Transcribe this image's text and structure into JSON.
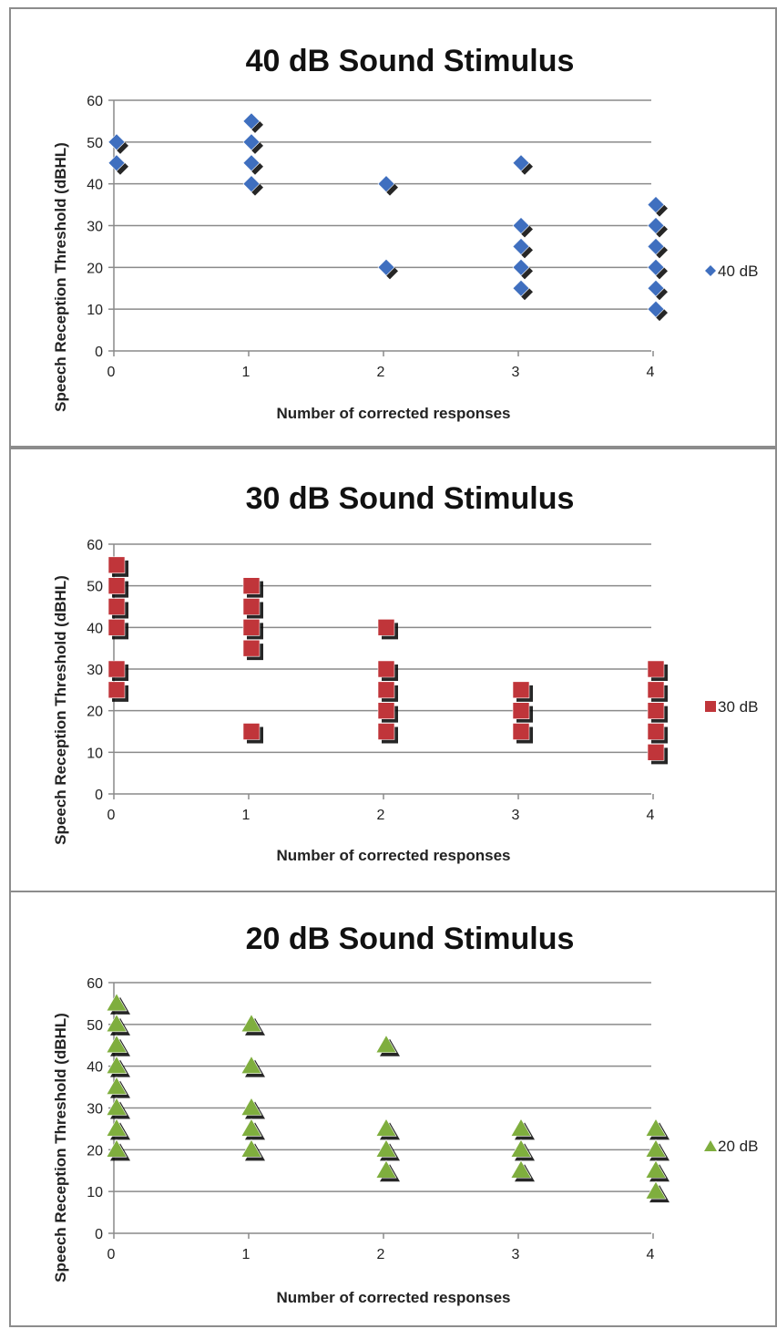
{
  "chart_data": [
    {
      "type": "scatter",
      "title": "40 dB Sound Stimulus",
      "xlabel": "Number of corrected responses",
      "ylabel": "Speech Reception Threshold (dBHL)",
      "xlim": [
        0,
        4
      ],
      "ylim": [
        0,
        60
      ],
      "xticks": [
        "0",
        "1",
        "2",
        "3",
        "4"
      ],
      "yticks": [
        "0",
        "10",
        "20",
        "30",
        "40",
        "50",
        "60"
      ],
      "grid": "horizontal",
      "legend_position": "right",
      "marker": "diamond",
      "color": "#3f6fbf",
      "series": [
        {
          "name": "40 dB",
          "points": [
            [
              0,
              45
            ],
            [
              0,
              50
            ],
            [
              1,
              40
            ],
            [
              1,
              45
            ],
            [
              1,
              50
            ],
            [
              1,
              55
            ],
            [
              2,
              20
            ],
            [
              2,
              40
            ],
            [
              3,
              15
            ],
            [
              3,
              20
            ],
            [
              3,
              25
            ],
            [
              3,
              30
            ],
            [
              3,
              45
            ],
            [
              4,
              10
            ],
            [
              4,
              15
            ],
            [
              4,
              20
            ],
            [
              4,
              25
            ],
            [
              4,
              30
            ],
            [
              4,
              35
            ]
          ]
        }
      ]
    },
    {
      "type": "scatter",
      "title": "30 dB Sound Stimulus",
      "xlabel": "Number of  corrected responses",
      "ylabel": "Speech Reception Threshold (dBHL)",
      "xlim": [
        0,
        4
      ],
      "ylim": [
        0,
        60
      ],
      "xticks": [
        "0",
        "1",
        "2",
        "3",
        "4"
      ],
      "yticks": [
        "0",
        "10",
        "20",
        "30",
        "40",
        "50",
        "60"
      ],
      "grid": "horizontal",
      "legend_position": "right",
      "marker": "square",
      "color": "#c0353a",
      "series": [
        {
          "name": "30 dB",
          "points": [
            [
              0,
              25
            ],
            [
              0,
              30
            ],
            [
              0,
              40
            ],
            [
              0,
              45
            ],
            [
              0,
              50
            ],
            [
              0,
              55
            ],
            [
              1,
              15
            ],
            [
              1,
              35
            ],
            [
              1,
              40
            ],
            [
              1,
              45
            ],
            [
              1,
              50
            ],
            [
              2,
              15
            ],
            [
              2,
              20
            ],
            [
              2,
              25
            ],
            [
              2,
              30
            ],
            [
              2,
              40
            ],
            [
              3,
              15
            ],
            [
              3,
              20
            ],
            [
              3,
              25
            ],
            [
              4,
              10
            ],
            [
              4,
              15
            ],
            [
              4,
              20
            ],
            [
              4,
              25
            ],
            [
              4,
              30
            ]
          ]
        }
      ]
    },
    {
      "type": "scatter",
      "title": "20 dB Sound Stimulus",
      "xlabel": "Number of corrected responses",
      "ylabel": "Speech Reception Threshold (dBHL)",
      "xlim": [
        0,
        4
      ],
      "ylim": [
        0,
        60
      ],
      "xticks": [
        "0",
        "1",
        "2",
        "3",
        "4"
      ],
      "yticks": [
        "0",
        "10",
        "20",
        "30",
        "40",
        "50",
        "60"
      ],
      "grid": "horizontal",
      "legend_position": "right",
      "marker": "triangle",
      "color": "#7fae3e",
      "series": [
        {
          "name": "20 dB",
          "points": [
            [
              0,
              20
            ],
            [
              0,
              25
            ],
            [
              0,
              30
            ],
            [
              0,
              35
            ],
            [
              0,
              40
            ],
            [
              0,
              45
            ],
            [
              0,
              50
            ],
            [
              0,
              55
            ],
            [
              1,
              20
            ],
            [
              1,
              25
            ],
            [
              1,
              30
            ],
            [
              1,
              40
            ],
            [
              1,
              50
            ],
            [
              2,
              15
            ],
            [
              2,
              20
            ],
            [
              2,
              25
            ],
            [
              2,
              45
            ],
            [
              3,
              15
            ],
            [
              3,
              20
            ],
            [
              3,
              25
            ],
            [
              4,
              10
            ],
            [
              4,
              15
            ],
            [
              4,
              20
            ],
            [
              4,
              25
            ]
          ]
        }
      ]
    }
  ]
}
